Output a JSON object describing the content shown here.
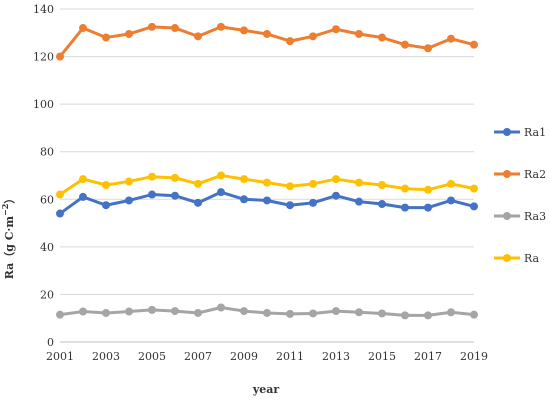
{
  "chart_data": {
    "type": "line",
    "xlabel": "year",
    "ylabel_main": "Ra（g C·m",
    "ylabel_sup": "−2",
    "ylabel_close": "）",
    "ylim": [
      0,
      140
    ],
    "yticks": [
      0,
      20,
      40,
      60,
      80,
      100,
      120,
      140
    ],
    "xtick_labels": [
      "2001",
      "2003",
      "2005",
      "2007",
      "2009",
      "2011",
      "2013",
      "2015",
      "2017",
      "2019"
    ],
    "x": [
      2001,
      2002,
      2003,
      2004,
      2005,
      2006,
      2007,
      2008,
      2009,
      2010,
      2011,
      2012,
      2013,
      2014,
      2015,
      2016,
      2017,
      2018,
      2019
    ],
    "grid": true,
    "legend_position": "right",
    "series": [
      {
        "name": "Ra1",
        "color": "#4472C4",
        "values": [
          54,
          61,
          57.5,
          59.5,
          62,
          61.5,
          58.5,
          63,
          60,
          59.5,
          57.5,
          58.5,
          61.5,
          59,
          58,
          56.5,
          56.5,
          59.5,
          57
        ]
      },
      {
        "name": "Ra2",
        "color": "#ED7D31",
        "values": [
          120,
          132,
          128,
          129.5,
          132.5,
          132,
          128.5,
          132.5,
          131,
          129.5,
          126.5,
          128.5,
          131.5,
          129.5,
          128,
          125,
          123.5,
          127.5,
          125
        ]
      },
      {
        "name": "Ra3",
        "color": "#A5A5A5",
        "values": [
          11.5,
          12.8,
          12.2,
          12.8,
          13.5,
          13,
          12.2,
          14.5,
          13,
          12.2,
          11.8,
          12,
          13,
          12.5,
          12,
          11.2,
          11.2,
          12.5,
          11.5
        ]
      },
      {
        "name": "Ra",
        "color": "#FFC000",
        "values": [
          62,
          68.5,
          66,
          67.5,
          69.5,
          69,
          66.5,
          70,
          68.5,
          67,
          65.5,
          66.5,
          68.5,
          67,
          66,
          64.5,
          64,
          66.5,
          64.5
        ]
      }
    ]
  }
}
